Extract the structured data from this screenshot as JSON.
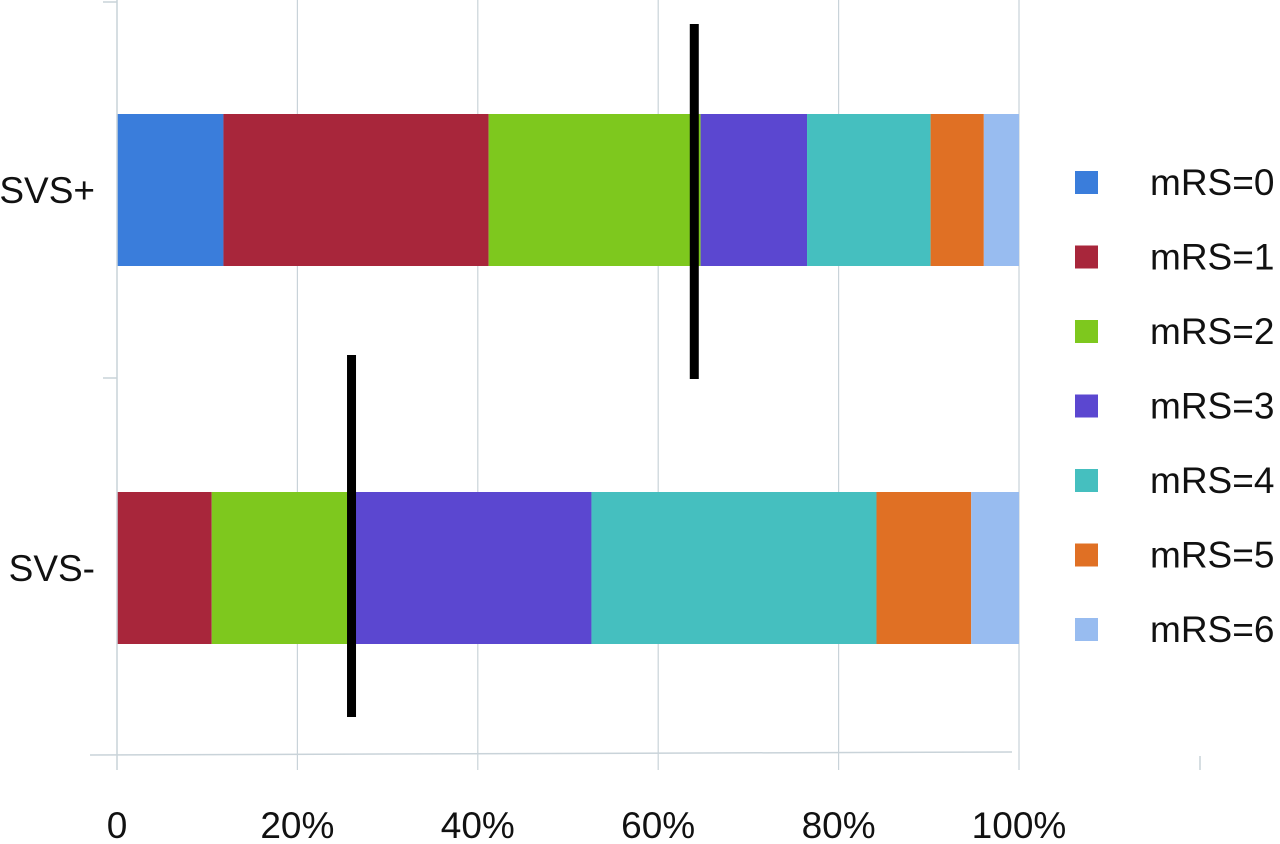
{
  "chart_data": {
    "type": "bar",
    "orientation": "horizontal",
    "stacking": "percent",
    "categories": [
      "SVS+",
      "SVS-"
    ],
    "series": [
      {
        "name": "mRS=0",
        "color": "#3a7ddb",
        "values": [
          11.8,
          0
        ]
      },
      {
        "name": "mRS=1",
        "color": "#a8263b",
        "values": [
          29.4,
          10.5
        ]
      },
      {
        "name": "mRS=2",
        "color": "#7ec81e",
        "values": [
          23.5,
          15.8
        ]
      },
      {
        "name": "mRS=3",
        "color": "#5b47d0",
        "values": [
          11.8,
          26.3
        ]
      },
      {
        "name": "mRS=4",
        "color": "#45bfbf",
        "values": [
          13.7,
          31.6
        ]
      },
      {
        "name": "mRS=5",
        "color": "#e07024",
        "values": [
          5.9,
          10.5
        ]
      },
      {
        "name": "mRS=6",
        "color": "#98bcf0",
        "values": [
          3.9,
          5.3
        ]
      }
    ],
    "medians": [
      64,
      26
    ],
    "median_line_color": "#000000",
    "xlim": [
      0,
      100
    ],
    "xticks": [
      "0",
      "20%",
      "40%",
      "60%",
      "80%",
      "100%"
    ],
    "title": "",
    "xlabel": "",
    "ylabel": "",
    "grid": "vertical",
    "legend_position": "right"
  }
}
